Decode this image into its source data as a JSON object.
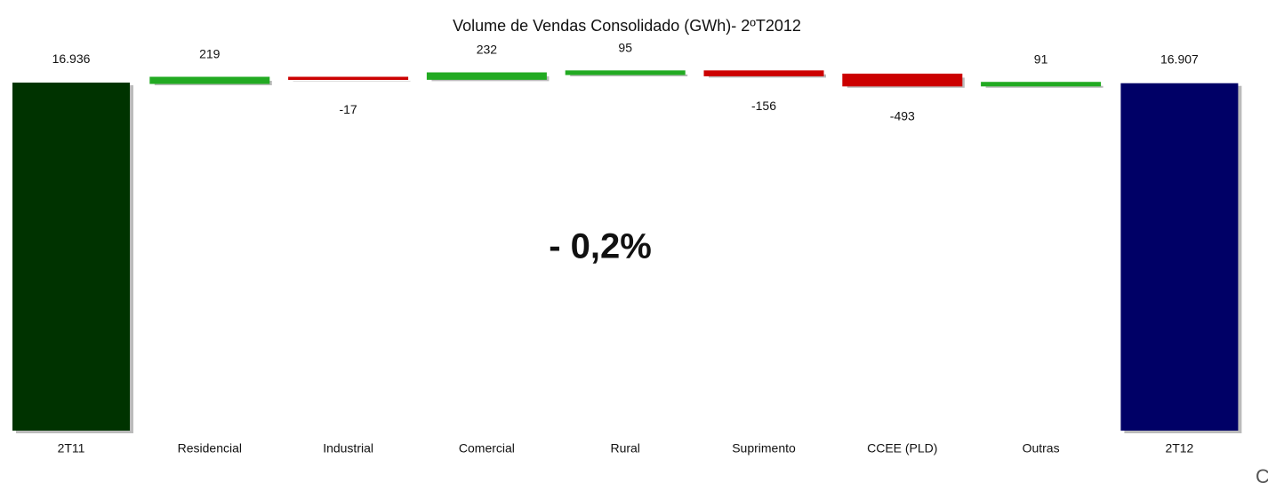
{
  "chart_data": {
    "type": "waterfall",
    "title": "Volume de Vendas Consolidado (GWh)-  2ºT2012",
    "annotation": "- 0,2%",
    "corner_text": "C",
    "categories": [
      "2T11",
      "Residencial",
      "Industrial",
      "Comercial",
      "Rural",
      "Suprimento",
      "CCEE (PLD)",
      "Outras",
      "2T12"
    ],
    "measures": [
      "absolute",
      "relative",
      "relative",
      "relative",
      "relative",
      "relative",
      "relative",
      "relative",
      "total"
    ],
    "values": [
      16936,
      219,
      -17,
      232,
      95,
      -156,
      -493,
      91,
      16907
    ],
    "value_labels": [
      "16.936",
      "219",
      "-17",
      "232",
      "95",
      "-156",
      "-493",
      "91",
      "16.907"
    ],
    "colors": {
      "start": "#003300",
      "end": "#000066",
      "increase": "#22aa22",
      "decrease": "#cc0000"
    },
    "ylim": [
      0,
      17500
    ]
  }
}
